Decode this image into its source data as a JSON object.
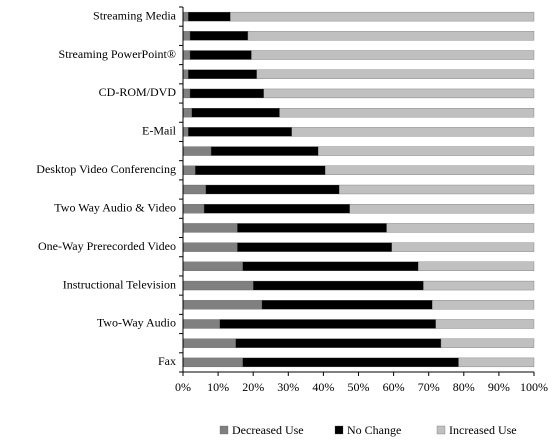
{
  "chart_data": {
    "type": "stacked-bar-horizontal",
    "categories": [
      "Streaming Media",
      null,
      "Streaming PowerPoint®",
      null,
      "CD-ROM/DVD",
      null,
      "E-Mail",
      null,
      "Desktop Video Conferencing",
      null,
      "Two Way Audio & Video",
      null,
      "One-Way Prerecorded Video",
      null,
      "Instructional Television",
      null,
      "Two-Way Audio",
      null,
      "Fax"
    ],
    "series": [
      {
        "name": "Decreased Use",
        "color": "#808080",
        "values": [
          1.5,
          2,
          2,
          1.5,
          2,
          2.5,
          1.5,
          8,
          3.5,
          6.5,
          6,
          15.5,
          15.5,
          17,
          20,
          22.5,
          10.5,
          15,
          17
        ]
      },
      {
        "name": "No Change",
        "color": "#000000",
        "values": [
          12,
          16.5,
          17.5,
          19.5,
          21,
          25,
          29.5,
          30.5,
          37,
          38,
          41.5,
          42.5,
          44,
          50,
          48.5,
          48.5,
          61.5,
          58.5,
          61.5
        ]
      },
      {
        "name": "Increased Use",
        "color": "#c0c0c0",
        "values": [
          86.5,
          81.5,
          80.5,
          79,
          77,
          72.5,
          69,
          61.5,
          59.5,
          55.5,
          52.5,
          42,
          40.5,
          33,
          31.5,
          29,
          28,
          26.5,
          21.5
        ]
      }
    ],
    "xlim": [
      0,
      100
    ],
    "xticks": [
      {
        "value": 0,
        "label": "0%"
      },
      {
        "value": 10,
        "label": "10%"
      },
      {
        "value": 20,
        "label": "20%"
      },
      {
        "value": 30,
        "label": "30%"
      },
      {
        "value": 40,
        "label": "40%"
      },
      {
        "value": 50,
        "label": "50%"
      },
      {
        "value": 60,
        "label": "60%"
      },
      {
        "value": 70,
        "label": "70%"
      },
      {
        "value": 80,
        "label": "80%"
      },
      {
        "value": 90,
        "label": "90%"
      },
      {
        "value": 100,
        "label": "100%"
      }
    ],
    "legend": "bottom"
  }
}
